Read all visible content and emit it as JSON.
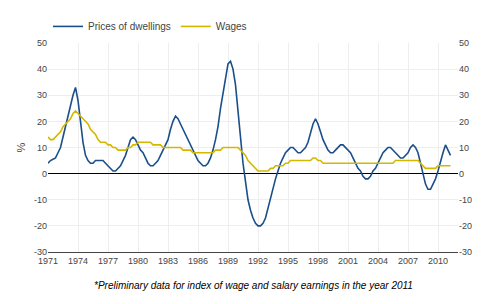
{
  "chart_data": {
    "type": "line",
    "ylabel": "%",
    "annotations": [
      "*Preliminary data for index of wage and salary earnings in the year 2011"
    ],
    "x": [
      1971,
      1971.25,
      1971.5,
      1971.75,
      1972,
      1972.25,
      1972.5,
      1972.75,
      1973,
      1973.25,
      1973.5,
      1973.75,
      1974,
      1974.25,
      1974.5,
      1974.75,
      1975,
      1975.25,
      1975.5,
      1975.75,
      1976,
      1976.25,
      1976.5,
      1976.75,
      1977,
      1977.25,
      1977.5,
      1977.75,
      1978,
      1978.25,
      1978.5,
      1978.75,
      1979,
      1979.25,
      1979.5,
      1979.75,
      1980,
      1980.25,
      1980.5,
      1980.75,
      1981,
      1981.25,
      1981.5,
      1981.75,
      1982,
      1982.25,
      1982.5,
      1982.75,
      1983,
      1983.25,
      1983.5,
      1983.75,
      1984,
      1984.25,
      1984.5,
      1984.75,
      1985,
      1985.25,
      1985.5,
      1985.75,
      1986,
      1986.25,
      1986.5,
      1986.75,
      1987,
      1987.25,
      1987.5,
      1987.75,
      1988,
      1988.25,
      1988.5,
      1988.75,
      1989,
      1989.25,
      1989.5,
      1989.75,
      1990,
      1990.25,
      1990.5,
      1990.75,
      1991,
      1991.25,
      1991.5,
      1991.75,
      1992,
      1992.25,
      1992.5,
      1992.75,
      1993,
      1993.25,
      1993.5,
      1993.75,
      1994,
      1994.25,
      1994.5,
      1994.75,
      1995,
      1995.25,
      1995.5,
      1995.75,
      1996,
      1996.25,
      1996.5,
      1996.75,
      1997,
      1997.25,
      1997.5,
      1997.75,
      1998,
      1998.25,
      1998.5,
      1998.75,
      1999,
      1999.25,
      1999.5,
      1999.75,
      2000,
      2000.25,
      2000.5,
      2000.75,
      2001,
      2001.25,
      2001.5,
      2001.75,
      2002,
      2002.25,
      2002.5,
      2002.75,
      2003,
      2003.25,
      2003.5,
      2003.75,
      2004,
      2004.25,
      2004.5,
      2004.75,
      2005,
      2005.25,
      2005.5,
      2005.75,
      2006,
      2006.25,
      2006.5,
      2006.75,
      2007,
      2007.25,
      2007.5,
      2007.75,
      2008,
      2008.25,
      2008.5,
      2008.75,
      2009,
      2009.25,
      2009.5,
      2009.75,
      2010,
      2010.25,
      2010.5,
      2010.75,
      2011,
      2011.25
    ],
    "series": [
      {
        "name": "Prices of dwellings",
        "color": "#1a4f8a",
        "values": [
          4,
          5,
          5.5,
          6,
          8,
          10,
          14,
          18,
          22,
          27,
          30,
          33,
          28,
          20,
          12,
          7,
          5,
          4,
          4,
          5,
          5,
          5,
          5,
          4,
          3,
          2,
          1,
          1,
          2,
          3,
          5,
          7,
          10,
          13,
          14,
          13,
          11,
          9,
          8,
          6,
          4,
          3,
          3,
          4,
          5,
          7,
          9,
          11,
          13,
          17,
          20,
          22,
          21,
          19,
          17,
          15,
          13,
          11,
          9,
          7,
          5,
          4,
          3,
          3,
          4,
          6,
          9,
          13,
          18,
          25,
          31,
          37,
          42,
          43,
          40,
          34,
          25,
          14,
          4,
          -4,
          -10,
          -14,
          -17,
          -19,
          -20,
          -20,
          -19,
          -17,
          -13,
          -9,
          -5,
          -2,
          1,
          4,
          6,
          8,
          9,
          10,
          10,
          9,
          8,
          8,
          9,
          10,
          12,
          16,
          19,
          21,
          19,
          16,
          13,
          11,
          9,
          8,
          8,
          9,
          10,
          11,
          11,
          10,
          9,
          8,
          6,
          4,
          2,
          1,
          -1,
          -2,
          -2,
          -1,
          1,
          2,
          4,
          6,
          8,
          9,
          10,
          10,
          9,
          8,
          7,
          6,
          6,
          7,
          8,
          10,
          11,
          10,
          8,
          4,
          0,
          -4,
          -6,
          -6,
          -4,
          -2,
          1,
          5,
          8,
          11,
          9,
          7
        ]
      },
      {
        "name": "Wages",
        "color": "#d4b800",
        "values": [
          14,
          13,
          13,
          14,
          15,
          16,
          18,
          19,
          20,
          21,
          23,
          24,
          23,
          22,
          21,
          20,
          19,
          17,
          16,
          15,
          13,
          12,
          12,
          12,
          11,
          11,
          10,
          10,
          9,
          9,
          9,
          9,
          10,
          10,
          11,
          11,
          12,
          12,
          12,
          12,
          12,
          12,
          11,
          11,
          11,
          11,
          10,
          10,
          10,
          10,
          10,
          10,
          10,
          10,
          9,
          9,
          9,
          9,
          8,
          8,
          8,
          8,
          8,
          8,
          8,
          8,
          8,
          9,
          9,
          9,
          10,
          10,
          10,
          10,
          10,
          10,
          10,
          9,
          8,
          7,
          5,
          4,
          3,
          2,
          1,
          1,
          1,
          1,
          1,
          2,
          2,
          3,
          3,
          3,
          3,
          4,
          4,
          5,
          5,
          5,
          5,
          5,
          5,
          5,
          5,
          5,
          6,
          6,
          5,
          5,
          4,
          4,
          4,
          4,
          4,
          4,
          4,
          4,
          4,
          4,
          4,
          4,
          4,
          4,
          4,
          4,
          4,
          4,
          4,
          4,
          4,
          4,
          4,
          4,
          4,
          4,
          4,
          4,
          4,
          5,
          5,
          5,
          5,
          5,
          5,
          5,
          5,
          5,
          5,
          4,
          3,
          2,
          2,
          2,
          2,
          2,
          3,
          3,
          3,
          3,
          3,
          3
        ]
      }
    ],
    "xlim": [
      1971,
      2012
    ],
    "xticks": [
      1971,
      1974,
      1977,
      1980,
      1983,
      1986,
      1989,
      1992,
      1995,
      1998,
      2001,
      2004,
      2007,
      2010
    ],
    "ylim": [
      -30,
      50
    ],
    "yticks": [
      -30,
      -20,
      -10,
      0,
      10,
      20,
      30,
      40,
      50
    ],
    "y2lim": [
      -30,
      50
    ],
    "y2ticks": [
      -30,
      -20,
      -10,
      0,
      10,
      20,
      30,
      40,
      50
    ],
    "grid": true,
    "legend": "upper left"
  }
}
